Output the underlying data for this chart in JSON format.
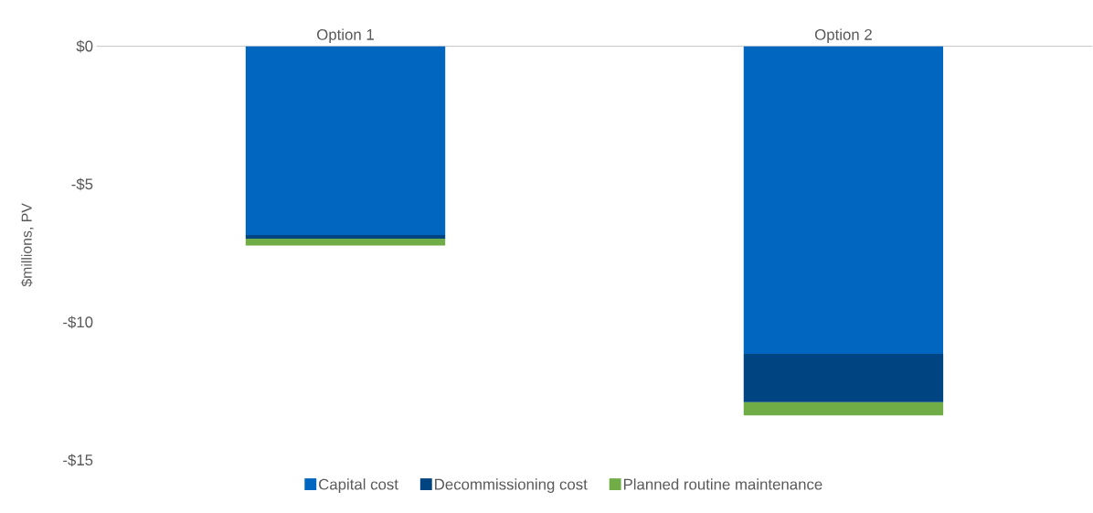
{
  "chart_data": {
    "type": "bar",
    "stacked": true,
    "ylabel": "$millions, PV",
    "categories": [
      "Option 1",
      "Option 2"
    ],
    "series": [
      {
        "name": "Capital cost",
        "color": "#0066bf",
        "values": [
          -6.84,
          -11.15
        ]
      },
      {
        "name": "Decommissioning cost",
        "color": "#004481",
        "values": [
          -0.13,
          -1.75
        ]
      },
      {
        "name": "Planned routine maintenance",
        "color": "#70ad47",
        "values": [
          -0.25,
          -0.48
        ]
      }
    ],
    "ylim": [
      -15,
      0
    ],
    "yticks": [
      {
        "value": 0,
        "label": "$0"
      },
      {
        "value": -5,
        "label": "-$5"
      },
      {
        "value": -10,
        "label": "-$10"
      },
      {
        "value": -15,
        "label": "-$15"
      }
    ],
    "legend": "bottom"
  }
}
